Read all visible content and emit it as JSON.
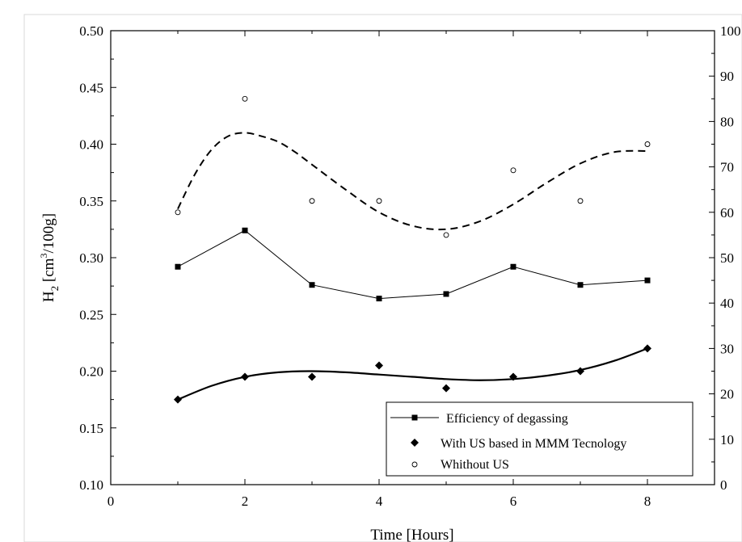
{
  "chart_data": {
    "type": "scatter",
    "xlabel": "Time [Hours]",
    "ylabel_main": "H",
    "ylabel_sub": "2",
    "ylabel_unit_pre": " [cm",
    "ylabel_unit_sup": "3",
    "ylabel_unit_post": "/100g]",
    "xlim": [
      0,
      9
    ],
    "ylim_left": [
      0.1,
      0.5
    ],
    "ylim_right": [
      0,
      100
    ],
    "x_ticks": [
      "0",
      "2",
      "4",
      "6",
      "8"
    ],
    "y_left_ticks": [
      "0.10",
      "0.15",
      "0.20",
      "0.25",
      "0.30",
      "0.35",
      "0.40",
      "0.45",
      "0.50"
    ],
    "y_right_ticks": [
      "0",
      "10",
      "20",
      "30",
      "40",
      "50",
      "60",
      "70",
      "80",
      "90",
      "100"
    ],
    "series": [
      {
        "name": "Efficiency of degassing",
        "axis": "right",
        "marker": "square",
        "line": "thin-solid",
        "x": [
          1,
          2,
          3,
          4,
          5,
          6,
          7,
          8
        ],
        "y": [
          48,
          56,
          44,
          41,
          42,
          48,
          44,
          45
        ]
      },
      {
        "name": "With US based in MMM Tecnology",
        "axis": "left",
        "marker": "diamond",
        "trend": "thick-solid-smooth",
        "x": [
          1,
          2,
          3,
          4,
          5,
          6,
          7,
          8
        ],
        "y": [
          0.175,
          0.195,
          0.195,
          0.205,
          0.185,
          0.195,
          0.2,
          0.22
        ]
      },
      {
        "name": "Whithout US",
        "axis": "left",
        "marker": "open-circle",
        "trend": "dashed-smooth",
        "x": [
          1,
          2,
          3,
          4,
          5,
          6,
          7,
          8
        ],
        "y": [
          0.34,
          0.44,
          0.35,
          0.35,
          0.32,
          0.377,
          0.35,
          0.4
        ]
      }
    ],
    "trendlines": {
      "with_us": {
        "x": [
          1,
          1.5,
          2,
          2.5,
          3,
          3.5,
          4,
          4.5,
          5,
          5.5,
          6,
          6.5,
          7,
          7.5,
          8
        ],
        "y": [
          0.175,
          0.187,
          0.195,
          0.199,
          0.2,
          0.199,
          0.197,
          0.195,
          0.193,
          0.192,
          0.193,
          0.196,
          0.201,
          0.209,
          0.22
        ]
      },
      "without_us": {
        "x": [
          1,
          1.25,
          1.5,
          1.75,
          2,
          2.25,
          2.5,
          2.75,
          3,
          3.5,
          4,
          4.5,
          5,
          5.5,
          6,
          6.5,
          7,
          7.5,
          8
        ],
        "y": [
          0.343,
          0.373,
          0.395,
          0.407,
          0.41,
          0.407,
          0.402,
          0.393,
          0.382,
          0.36,
          0.34,
          0.328,
          0.325,
          0.332,
          0.347,
          0.366,
          0.383,
          0.393,
          0.394
        ]
      }
    },
    "legend": {
      "position": "bottom-right",
      "entries": [
        "Efficiency of degassing",
        "With US based in MMM Tecnology",
        "Whithout US"
      ]
    },
    "grid": false
  }
}
